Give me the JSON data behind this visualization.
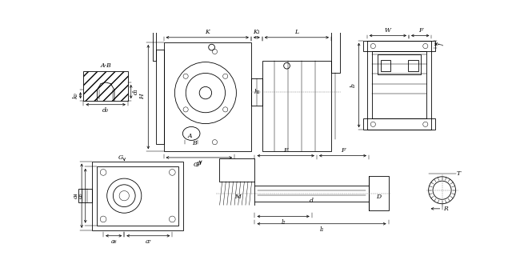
{
  "bg_color": "#ffffff",
  "lw": 0.6,
  "tlw": 0.35,
  "labels": {
    "AB": "A-B",
    "K": "K",
    "K1": "K₁",
    "L": "L",
    "H": "H",
    "h1": "h₁",
    "A": "A",
    "B": "B",
    "g1": "g₁",
    "G": "G",
    "W": "W",
    "F": "F",
    "f": "f",
    "b": "b",
    "a4": "a₄",
    "a5": "a₅",
    "a6": "a₆",
    "a7": "a₇",
    "M": "M",
    "d": "d",
    "D": "D",
    "l2": "l₂",
    "l1": "l₁",
    "T": "T",
    "R": "R",
    "k0": "k₀",
    "d1": "d₁",
    "d0": "d₀"
  },
  "fs": 5.5,
  "fs_sm": 5.0
}
